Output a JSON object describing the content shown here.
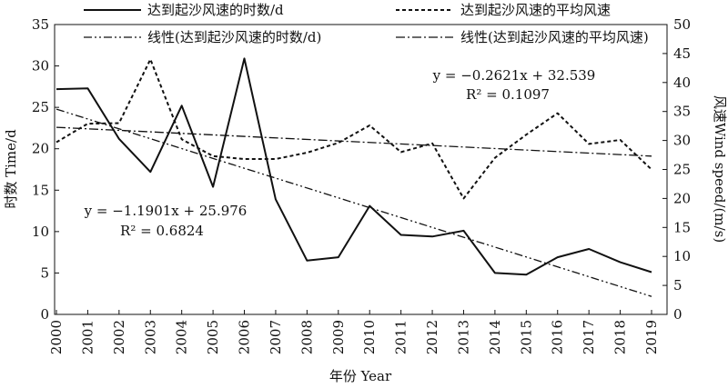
{
  "chart_data": {
    "type": "line",
    "x": [
      "2000",
      "2001",
      "2002",
      "2003",
      "2004",
      "2005",
      "2006",
      "2007",
      "2008",
      "2009",
      "2010",
      "2011",
      "2012",
      "2013",
      "2014",
      "2015",
      "2016",
      "2017",
      "2018",
      "2019"
    ],
    "xlabel": "年份 Year",
    "ylabel_left": "时数 Time/d",
    "ylabel_right": "风速Wind speed/(m/s)",
    "ylim_left": [
      0,
      35
    ],
    "ylim_right": [
      0,
      50
    ],
    "yticks_left": [
      "0",
      "5",
      "10",
      "15",
      "20",
      "25",
      "30",
      "35"
    ],
    "yticks_right": [
      "0",
      "5",
      "10",
      "15",
      "20",
      "25",
      "30",
      "35",
      "40",
      "45",
      "50"
    ],
    "grid": false,
    "legend_placement": "top",
    "series": [
      {
        "name": "达到起沙风速的时数/d",
        "axis": "left",
        "style": "solid",
        "values": [
          27.2,
          27.3,
          21.2,
          17.2,
          25.2,
          15.4,
          30.9,
          13.9,
          6.5,
          6.9,
          13.1,
          9.6,
          9.4,
          10.1,
          5.0,
          4.8,
          6.9,
          7.9,
          6.3,
          5.1
        ]
      },
      {
        "name": "达到起沙风速的平均风速",
        "axis": "right",
        "style": "dashed",
        "values": [
          29.7,
          32.9,
          33.0,
          44.0,
          30.2,
          27.3,
          26.8,
          26.8,
          27.9,
          29.6,
          32.6,
          28.0,
          29.5,
          20.0,
          27.0,
          31.0,
          34.7,
          29.4,
          30.1,
          25.0
        ]
      },
      {
        "name": "线性(达到起沙风速的时数/d)",
        "axis": "left",
        "style": "dash-dot-dot",
        "trend": {
          "slope": -1.1901,
          "intercept": 25.976
        }
      },
      {
        "name": "线性(达到起沙风速的平均风速)",
        "axis": "right",
        "style": "dash-dot",
        "trend": {
          "slope": -0.2621,
          "intercept": 32.539
        }
      }
    ],
    "annotations": [
      {
        "target": "right",
        "equation": "y = −0.2621x + 32.539",
        "r2": "R² = 0.1097"
      },
      {
        "target": "left",
        "equation": "y = −1.1901x + 25.976",
        "r2": "R² = 0.6824"
      }
    ]
  }
}
